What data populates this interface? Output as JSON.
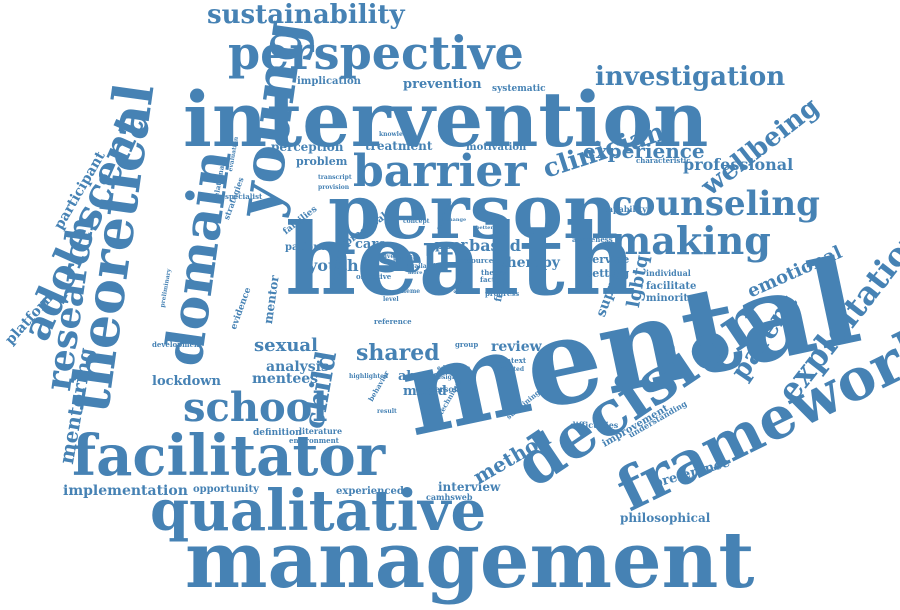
{
  "colors": {
    "word": "#4682b4",
    "background": "#ffffff"
  },
  "words": [
    "mental",
    "health",
    "person",
    "intervention",
    "management",
    "qualitative",
    "decision",
    "framework",
    "young",
    "facilitator",
    "theoretical",
    "perspective",
    "domain",
    "school",
    "barrier",
    "making",
    "adolescent",
    "research",
    "counseling",
    "exploitation",
    "self",
    "investigation",
    "sustainability",
    "clinician",
    "wellbeing",
    "child",
    "parent",
    "shared",
    "sexual",
    "experience",
    "emotional",
    "mentoring",
    "professional",
    "method",
    "youth",
    "platform",
    "participant",
    "implementation",
    "lgbtq",
    "mentees",
    "lockdown",
    "analysis",
    "review",
    "therapy",
    "based",
    "support",
    "peer",
    "care",
    "preference",
    "philosophical",
    "abuse",
    "mixed",
    "interview",
    "perception",
    "problem",
    "treatment",
    "prevention",
    "implication",
    "motivation",
    "service",
    "setting",
    "opportunity",
    "experienced",
    "camhsweb",
    "mentor",
    "definition",
    "literature",
    "practical",
    "patient",
    "engagement",
    "families",
    "strategies",
    "evidence",
    "specialist",
    "facilitate",
    "minority",
    "individual",
    "capability",
    "characteristic",
    "systematic",
    "knowledge",
    "finding",
    "improvement",
    "understanding",
    "difficulties",
    "sustaining",
    "technique",
    "awareness",
    "personal",
    "objective",
    "resource",
    "theory",
    "factor",
    "group",
    "progress",
    "context",
    "affected",
    "relational",
    "evaluation",
    "preliminary",
    "development",
    "environment",
    "highlighted",
    "behavior",
    "exploring",
    "concept",
    "change",
    "positive",
    "practice",
    "theme",
    "result",
    "reference",
    "staff",
    "level",
    "design",
    "education",
    "provision",
    "transcript",
    "availability",
    "more",
    "better",
    "scoping",
    "psychiatric"
  ]
}
